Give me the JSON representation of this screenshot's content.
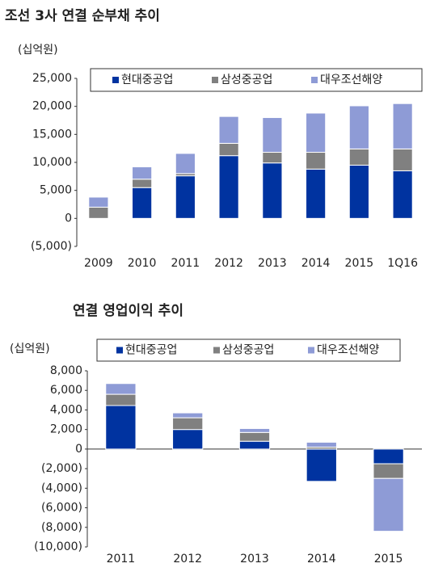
{
  "chart_data": [
    {
      "type": "bar",
      "stacked": true,
      "title": "조선 3사 연결 순부채 추이",
      "unit": "(십억원)",
      "categories": [
        "2009",
        "2010",
        "2011",
        "2012",
        "2013",
        "2014",
        "2015",
        "1Q16"
      ],
      "series": [
        {
          "name": "현대중공업",
          "color": "#0033a0",
          "values": [
            0,
            5500,
            7600,
            11200,
            9900,
            8800,
            9500,
            8500
          ]
        },
        {
          "name": "삼성중공업",
          "color": "#808080",
          "values": [
            2000,
            1500,
            400,
            2200,
            1900,
            3000,
            2900,
            3900
          ]
        },
        {
          "name": "대우조선해양",
          "color": "#8e9bd6",
          "values": [
            1800,
            2200,
            3600,
            4800,
            6200,
            7000,
            7700,
            8100
          ]
        }
      ],
      "ylim": [
        -5000,
        25000
      ],
      "yticks": [
        {
          "value": -5000,
          "label": "(5,000)"
        },
        0,
        {
          "value": 5000,
          "label": "5,000"
        },
        {
          "value": 10000,
          "label": "10,000"
        },
        {
          "value": 15000,
          "label": "15,000"
        },
        {
          "value": 20000,
          "label": "20,000"
        },
        {
          "value": 25000,
          "label": "25,000"
        }
      ],
      "grid": false,
      "legend": "top"
    },
    {
      "type": "bar",
      "stacked": true,
      "title": "연결 영업이익 추이",
      "unit": "(십억원)",
      "categories": [
        "2011",
        "2012",
        "2013",
        "2014",
        "2015"
      ],
      "series": [
        {
          "name": "현대중공업",
          "color": "#0033a0",
          "values": [
            4450,
            2000,
            800,
            -3300,
            -1500
          ]
        },
        {
          "name": "삼성중공업",
          "color": "#808080",
          "values": [
            1150,
            1200,
            900,
            200,
            -1500
          ]
        },
        {
          "name": "대우조선해양",
          "color": "#8e9bd6",
          "values": [
            1100,
            500,
            400,
            500,
            -5400
          ]
        }
      ],
      "ylim": [
        -10000,
        8000
      ],
      "yticks": [
        {
          "value": -10000,
          "label": "(10,000)"
        },
        {
          "value": -8000,
          "label": "(8,000)"
        },
        {
          "value": -6000,
          "label": "(6,000)"
        },
        {
          "value": -4000,
          "label": "(4,000)"
        },
        {
          "value": -2000,
          "label": "(2,000)"
        },
        0,
        {
          "value": 2000,
          "label": "2,000"
        },
        {
          "value": 4000,
          "label": "4,000"
        },
        {
          "value": 6000,
          "label": "6,000"
        },
        {
          "value": 8000,
          "label": "8,000"
        }
      ],
      "grid": false,
      "legend": "top"
    }
  ]
}
